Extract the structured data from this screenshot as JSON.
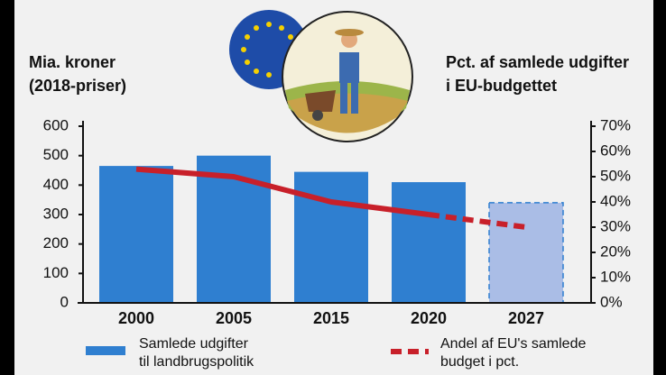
{
  "chart_data": {
    "type": "bar",
    "y_label": [
      "Mia. kroner",
      "(2018-priser)"
    ],
    "y2_label": [
      "Pct. af samlede udgifter",
      "i EU-budgettet"
    ],
    "categories": [
      "2000",
      "2005",
      "2015",
      "2020",
      "2027"
    ],
    "projected": [
      false,
      false,
      false,
      false,
      true
    ],
    "series": [
      {
        "name": [
          "Samlede udgifter",
          "til landbrugspolitik"
        ],
        "type": "bar",
        "color": "#2f7fd0",
        "projected_color": "#aabde6",
        "values": [
          465,
          500,
          445,
          410,
          340
        ]
      },
      {
        "name": [
          "Andel af EU's samlede",
          "budget i pct."
        ],
        "type": "line",
        "axis": "y2",
        "color": "#c8202a",
        "values": [
          53,
          50,
          40,
          35,
          30
        ]
      }
    ],
    "ylim": [
      0,
      600
    ],
    "yticks": [
      0,
      100,
      200,
      300,
      400,
      500,
      600
    ],
    "y2lim": [
      0,
      70
    ],
    "y2ticks": [
      {
        "value": 0,
        "label": "0%"
      },
      {
        "value": 10,
        "label": "10%"
      },
      {
        "value": 20,
        "label": "20%"
      },
      {
        "value": 30,
        "label": "30%"
      },
      {
        "value": 40,
        "label": "40%"
      },
      {
        "value": 50,
        "label": "50%"
      },
      {
        "value": 60,
        "label": "60%"
      },
      {
        "value": 70,
        "label": "70%"
      }
    ],
    "grid": false
  }
}
